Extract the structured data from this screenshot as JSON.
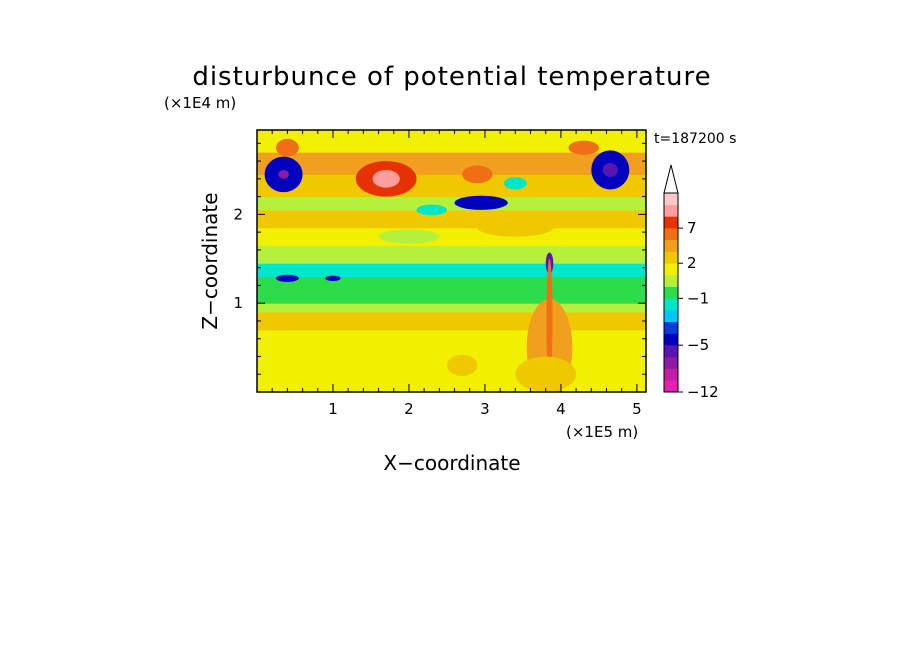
{
  "chart_data": {
    "type": "heatmap",
    "title": "disturbunce of potential temperature",
    "xlabel": "X−coordinate",
    "ylabel": "Z−coordinate",
    "x_unit": "(×1E5 m)",
    "y_unit": "(×1E4 m)",
    "time_label": "t=187200 s",
    "xlim": [
      0,
      5.12
    ],
    "ylim": [
      0,
      2.95
    ],
    "x_ticks": [
      1,
      2,
      3,
      4,
      5
    ],
    "x_tick_labels": [
      "1",
      "2",
      "3",
      "4",
      "5"
    ],
    "y_ticks": [
      1,
      2
    ],
    "y_tick_labels": [
      "1",
      "2"
    ],
    "colorbar": {
      "levels": [
        -12,
        -11,
        -9,
        -7,
        -5,
        -4,
        -3,
        -2,
        -1,
        0,
        1,
        2,
        3,
        5,
        7,
        9,
        11
      ],
      "colors": [
        "#e61eb4",
        "#c31ea5",
        "#8c1aa5",
        "#5a14b4",
        "#0000be",
        "#0a3cdc",
        "#00c8ff",
        "#00e6c8",
        "#2ddc4b",
        "#b4f03c",
        "#f0f000",
        "#f0c800",
        "#f0a01e",
        "#f06e14",
        "#e63200",
        "#ff9e9e",
        "#f7c9c9"
      ],
      "tick_values": [
        -12,
        -5,
        -1,
        2,
        7
      ],
      "tick_labels": [
        "−12",
        "−5",
        "−1",
        "2",
        "7"
      ],
      "extend_max": true
    },
    "field_bands": [
      {
        "z_from": 0.0,
        "z_to": 0.7,
        "level": 1
      },
      {
        "z_from": 0.7,
        "z_to": 0.9,
        "level": 2
      },
      {
        "z_from": 0.9,
        "z_to": 1.0,
        "level": 0
      },
      {
        "z_from": 1.0,
        "z_to": 1.3,
        "level": -1
      },
      {
        "z_from": 1.3,
        "z_to": 1.45,
        "level": -2
      },
      {
        "z_from": 1.45,
        "z_to": 1.65,
        "level": 0
      },
      {
        "z_from": 1.65,
        "z_to": 1.85,
        "level": 1
      },
      {
        "z_from": 1.85,
        "z_to": 2.05,
        "level": 2
      },
      {
        "z_from": 2.05,
        "z_to": 2.2,
        "level": 0
      },
      {
        "z_from": 2.2,
        "z_to": 2.45,
        "level": 2
      },
      {
        "z_from": 2.45,
        "z_to": 2.7,
        "level": 3
      },
      {
        "z_from": 2.7,
        "z_to": 2.95,
        "level": 1
      }
    ],
    "features": [
      {
        "x": 0.35,
        "z": 2.45,
        "rx": 0.25,
        "rz": 0.2,
        "level": -5
      },
      {
        "x": 0.35,
        "z": 2.45,
        "rx": 0.07,
        "rz": 0.05,
        "level": -9
      },
      {
        "x": 1.7,
        "z": 2.4,
        "rx": 0.4,
        "rz": 0.2,
        "level": 7
      },
      {
        "x": 1.7,
        "z": 2.4,
        "rx": 0.18,
        "rz": 0.1,
        "level": 9
      },
      {
        "x": 0.4,
        "z": 2.75,
        "rx": 0.15,
        "rz": 0.1,
        "level": 5
      },
      {
        "x": 2.9,
        "z": 2.45,
        "rx": 0.2,
        "rz": 0.1,
        "level": 5
      },
      {
        "x": 2.95,
        "z": 2.13,
        "rx": 0.35,
        "rz": 0.08,
        "level": -5
      },
      {
        "x": 2.3,
        "z": 2.05,
        "rx": 0.2,
        "rz": 0.06,
        "level": -2
      },
      {
        "x": 3.4,
        "z": 2.35,
        "rx": 0.15,
        "rz": 0.07,
        "level": -2
      },
      {
        "x": 4.65,
        "z": 2.5,
        "rx": 0.25,
        "rz": 0.22,
        "level": -5
      },
      {
        "x": 4.65,
        "z": 2.5,
        "rx": 0.1,
        "rz": 0.08,
        "level": -7
      },
      {
        "x": 4.3,
        "z": 2.75,
        "rx": 0.2,
        "rz": 0.08,
        "level": 5
      },
      {
        "x": 3.4,
        "z": 1.85,
        "rx": 0.5,
        "rz": 0.1,
        "level": 2
      },
      {
        "x": 2.0,
        "z": 1.75,
        "rx": 0.4,
        "rz": 0.08,
        "level": 0
      },
      {
        "x": 0.4,
        "z": 1.28,
        "rx": 0.15,
        "rz": 0.04,
        "level": -5
      },
      {
        "x": 1.0,
        "z": 1.28,
        "rx": 0.1,
        "rz": 0.03,
        "level": -5
      },
      {
        "x": 3.85,
        "z": 1.45,
        "rx": 0.05,
        "rz": 0.12,
        "level": -7
      },
      {
        "x": 3.85,
        "z": 0.5,
        "rx": 0.3,
        "rz": 0.55,
        "level": 3
      },
      {
        "x": 3.85,
        "z": 0.8,
        "rx": 0.04,
        "rz": 0.7,
        "level": 5
      },
      {
        "x": 3.8,
        "z": 0.2,
        "rx": 0.4,
        "rz": 0.2,
        "level": 2
      },
      {
        "x": 2.7,
        "z": 0.3,
        "rx": 0.2,
        "rz": 0.12,
        "level": 2
      }
    ]
  }
}
